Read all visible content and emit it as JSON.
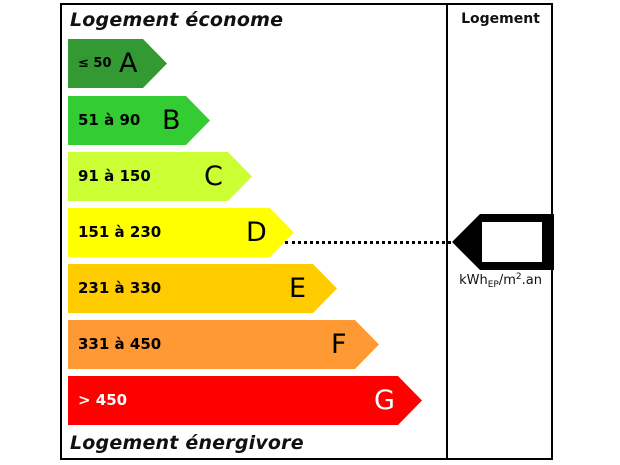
{
  "labels": {
    "top": "Logement économe",
    "bottom": "Logement énergivore",
    "column": "Logement"
  },
  "unit": {
    "base": "kWh",
    "sub": "EP",
    "mid": "/m",
    "sup": "2",
    "end": ".an"
  },
  "bands": [
    {
      "range": "≤ 50",
      "letter": "A",
      "color": "#339933",
      "text_color": "#000000"
    },
    {
      "range": "51 à 90",
      "letter": "B",
      "color": "#33cc33",
      "text_color": "#000000"
    },
    {
      "range": "91 à 150",
      "letter": "C",
      "color": "#ccff33",
      "text_color": "#000000"
    },
    {
      "range": "151 à 230",
      "letter": "D",
      "color": "#ffff00",
      "text_color": "#000000"
    },
    {
      "range": "231 à 330",
      "letter": "E",
      "color": "#ffcc00",
      "text_color": "#000000"
    },
    {
      "range": "331 à 450",
      "letter": "F",
      "color": "#ff9933",
      "text_color": "#000000"
    },
    {
      "range": "> 450",
      "letter": "G",
      "color": "#ff0000",
      "text_color": "#ffffff"
    }
  ],
  "indicator": {
    "band_letter": "D",
    "value": ""
  }
}
